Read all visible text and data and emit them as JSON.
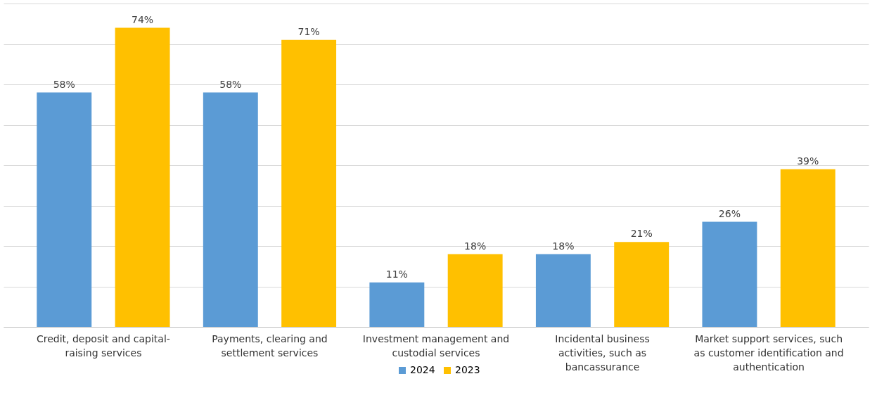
{
  "chart_data": {
    "type": "bar",
    "categories": [
      "Credit, deposit and capital-raising services",
      "Payments, clearing and settlement services",
      "Investment management and custodial services",
      "Incidental business activities, such as bancassurance",
      "Market support services, such as customer identification and authentication"
    ],
    "series": [
      {
        "name": "2024",
        "color": "#5b9bd5",
        "values": [
          58,
          58,
          11,
          18,
          26
        ],
        "value_labels": [
          "58%",
          "58%",
          "11%",
          "18%",
          "26%"
        ]
      },
      {
        "name": "2023",
        "color": "#ffc000",
        "values": [
          74,
          71,
          18,
          21,
          39
        ],
        "value_labels": [
          "74%",
          "71%",
          "18%",
          "21%",
          "39%"
        ]
      }
    ],
    "tick_labels": "x",
    "grid": "y",
    "legend": "bottom"
  }
}
